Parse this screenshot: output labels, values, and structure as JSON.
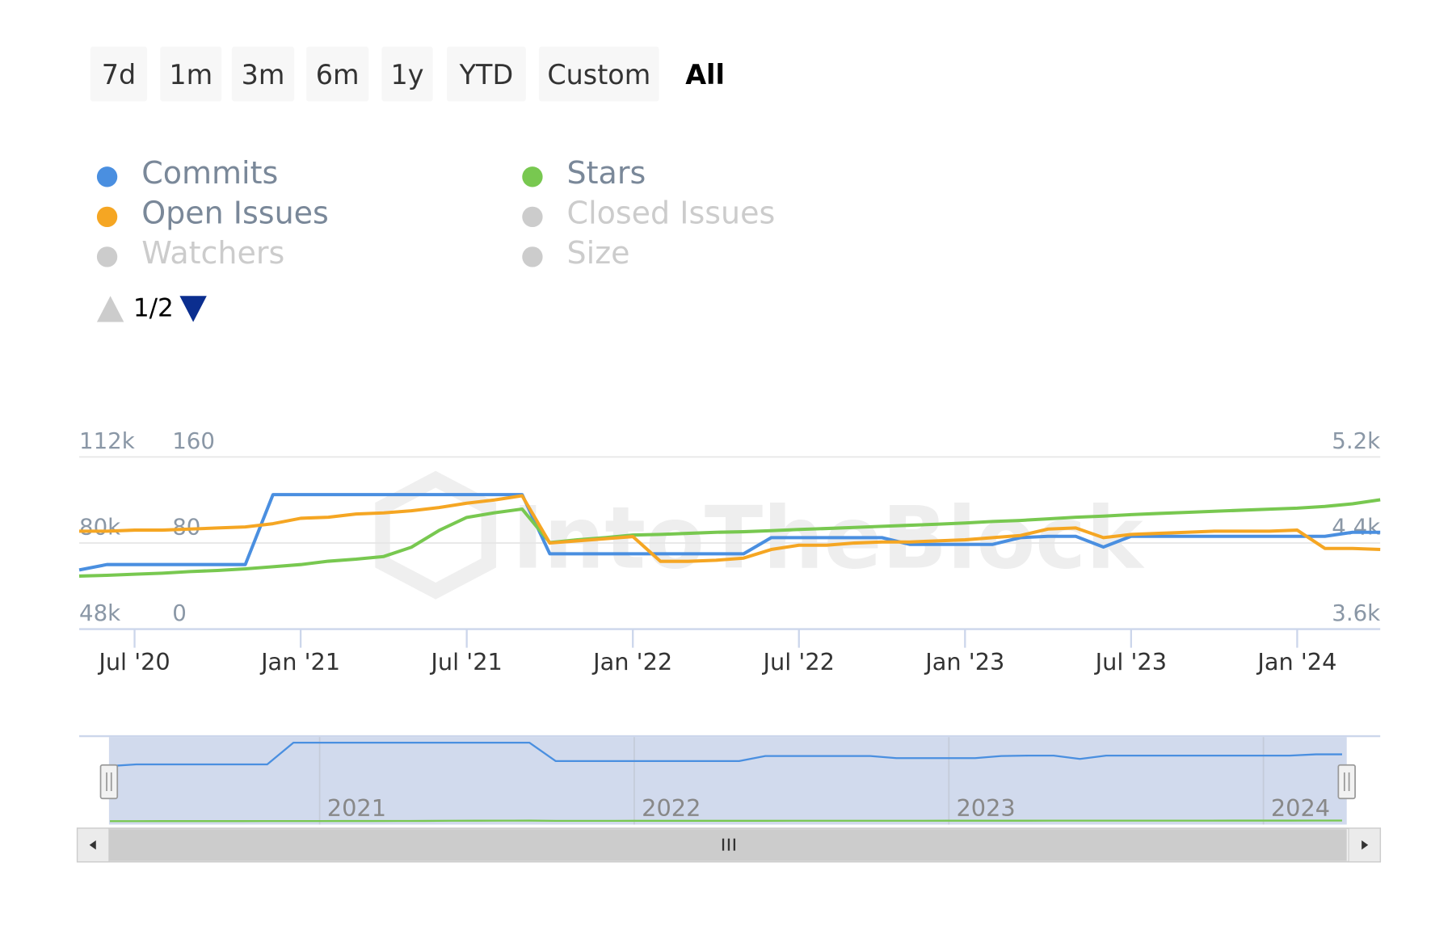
{
  "chart_data": {
    "type": "line",
    "range_buttons": [
      "7d",
      "1m",
      "3m",
      "6m",
      "1y",
      "YTD",
      "Custom",
      "All"
    ],
    "selected_button": "All",
    "legend_page": "1/2",
    "hidden_series": [
      "Closed Issues",
      "Watchers",
      "Size"
    ],
    "watermark": "IntoTheBlock",
    "x": [
      "2020-05",
      "2020-06",
      "2020-07",
      "2020-08",
      "2020-09",
      "2020-10",
      "2020-11",
      "2020-12",
      "2021-01",
      "2021-02",
      "2021-03",
      "2021-04",
      "2021-05",
      "2021-06",
      "2021-07",
      "2021-08",
      "2021-09",
      "2021-10",
      "2021-11",
      "2021-12",
      "2022-01",
      "2022-02",
      "2022-03",
      "2022-04",
      "2022-05",
      "2022-06",
      "2022-07",
      "2022-08",
      "2022-09",
      "2022-10",
      "2022-11",
      "2022-12",
      "2023-01",
      "2023-02",
      "2023-03",
      "2023-04",
      "2023-05",
      "2023-06",
      "2023-07",
      "2023-08",
      "2023-09",
      "2023-10",
      "2023-11",
      "2023-12",
      "2024-01",
      "2024-02",
      "2024-03",
      "2024-04"
    ],
    "xlim": [
      "2020-05",
      "2024-04"
    ],
    "xticks": [
      {
        "value": "2020-07",
        "label": "Jul '20"
      },
      {
        "value": "2021-01",
        "label": "Jan '21"
      },
      {
        "value": "2021-07",
        "label": "Jul '21"
      },
      {
        "value": "2022-01",
        "label": "Jan '22"
      },
      {
        "value": "2022-07",
        "label": "Jul '22"
      },
      {
        "value": "2023-01",
        "label": "Jan '23"
      },
      {
        "value": "2023-07",
        "label": "Jul '23"
      },
      {
        "value": "2024-01",
        "label": "Jan '24"
      }
    ],
    "navigator_xticks": [
      {
        "value": "2021-01",
        "label": "2021"
      },
      {
        "value": "2022-01",
        "label": "2022"
      },
      {
        "value": "2023-01",
        "label": "2023"
      },
      {
        "value": "2024-01",
        "label": "2024"
      }
    ],
    "ylim": [
      48000,
      112000
    ],
    "yticks": [
      {
        "value": 48000,
        "label": "48k"
      },
      {
        "value": 80000,
        "label": "80k"
      },
      {
        "value": 112000,
        "label": "112k"
      }
    ],
    "y2lim": [
      0,
      160
    ],
    "y2ticks": [
      0,
      80,
      160
    ],
    "y3lim": [
      3600,
      5200
    ],
    "y3ticks": [
      {
        "value": 3600,
        "label": "3.6k"
      },
      {
        "value": 4400,
        "label": "4.4k"
      },
      {
        "value": 5200,
        "label": "5.2k"
      }
    ],
    "grid": true,
    "series": [
      {
        "name": "Commits",
        "color": "#4a8fe0",
        "axis": "y",
        "values": [
          70000,
          72000,
          72000,
          72000,
          72000,
          72000,
          72000,
          98000,
          98000,
          98000,
          98000,
          98000,
          98000,
          98000,
          98000,
          98000,
          98000,
          76000,
          76000,
          76000,
          76000,
          76000,
          76000,
          76000,
          76000,
          82000,
          82000,
          82000,
          82000,
          82000,
          79500,
          79500,
          79500,
          79500,
          82000,
          82500,
          82500,
          78500,
          82500,
          82500,
          82500,
          82500,
          82500,
          82500,
          82500,
          82500,
          84000,
          84000
        ]
      },
      {
        "name": "Stars",
        "color": "#78c850",
        "axis": "y3",
        "values": [
          4093,
          4100,
          4110,
          4120,
          4135,
          4145,
          4160,
          4180,
          4200,
          4231,
          4250,
          4275,
          4361,
          4517,
          4638,
          4681,
          4716,
          4404,
          4430,
          4450,
          4474,
          4480,
          4490,
          4500,
          4505,
          4515,
          4526,
          4535,
          4545,
          4555,
          4565,
          4575,
          4586,
          4600,
          4610,
          4625,
          4640,
          4650,
          4664,
          4675,
          4685,
          4695,
          4705,
          4715,
          4724,
          4740,
          4765,
          4802
        ]
      },
      {
        "name": "Open Issues",
        "color": "#f5a623",
        "axis": "y2",
        "values": [
          91,
          91,
          92,
          92,
          93,
          94,
          95,
          98,
          103,
          104,
          107,
          108,
          110,
          113,
          117,
          120,
          124,
          80,
          82,
          84,
          86,
          63,
          63,
          64,
          66,
          74,
          78,
          78,
          80,
          81,
          81,
          82,
          83,
          85,
          87,
          93,
          94,
          85,
          88,
          89,
          90,
          91,
          91,
          91,
          92,
          75,
          75,
          74
        ]
      }
    ]
  }
}
